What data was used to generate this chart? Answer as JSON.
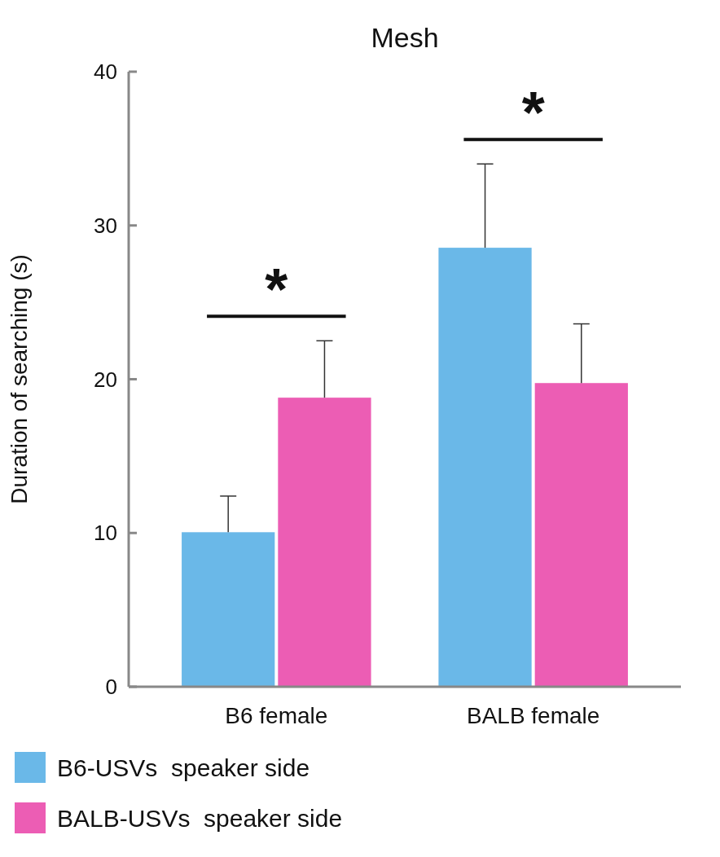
{
  "chart_data": {
    "type": "bar",
    "title": "Mesh",
    "ylabel": "Duration of searching (s)",
    "categories": [
      "B6 female",
      "BALB female"
    ],
    "series": [
      {
        "name": "B6-USVs  speaker side",
        "color": "#6ab8e8",
        "values": [
          10.05,
          28.55
        ],
        "errors": [
          [
            10.05,
            12.4
          ],
          [
            28.55,
            34.0
          ]
        ]
      },
      {
        "name": "BALB-USVs  speaker side",
        "color": "#ec5db4",
        "values": [
          18.8,
          19.75
        ],
        "errors": [
          [
            18.8,
            22.5
          ],
          [
            19.75,
            23.6
          ]
        ]
      }
    ],
    "ylim": [
      0,
      40
    ],
    "yticks": [
      0,
      10,
      20,
      30,
      40
    ],
    "grid": false,
    "legend": "bottom left",
    "annotations": [
      "*",
      "*"
    ]
  }
}
